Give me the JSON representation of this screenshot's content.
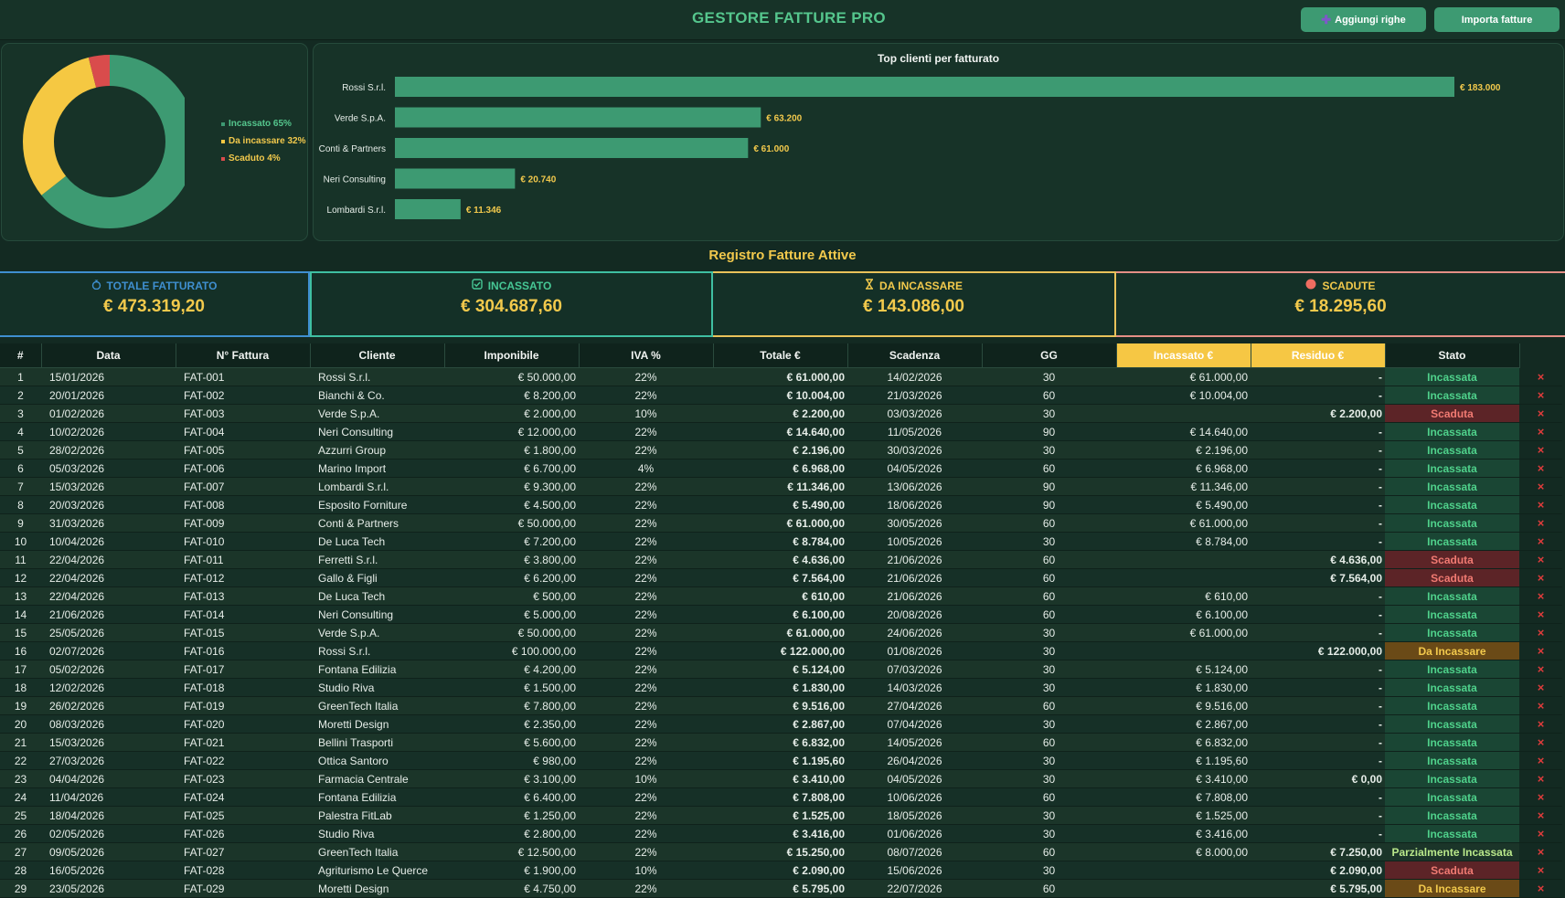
{
  "app": {
    "title": "GESTORE FATTURE PRO"
  },
  "toolbar": {
    "add_rows_label": "Aggiungi righe",
    "import_label": "Importa fatture"
  },
  "colors": {
    "green": "#3d9a72",
    "yellow": "#f5c842",
    "red": "#d94c4c",
    "accent": "#55c68d"
  },
  "donut": {
    "chart_data": {
      "type": "pie",
      "labels": [
        "Incassato",
        "Da incassare",
        "Scaduto"
      ],
      "values": [
        65,
        32,
        4
      ],
      "colors": [
        "#3d9a72",
        "#f5c842",
        "#d94c4c"
      ]
    },
    "legend": [
      "Incassato 65%",
      "Da incassare 32%",
      "Scaduto 4%"
    ]
  },
  "chart_data": {
    "type": "bar",
    "orientation": "horizontal",
    "title": "Top clienti per fatturato",
    "categories": [
      "Rossi S.r.l.",
      "Verde S.p.A.",
      "Conti & Partners",
      "Neri Consulting",
      "Lombardi S.r.l."
    ],
    "values": [
      183000,
      63200,
      61000,
      20740,
      11346
    ],
    "value_labels": [
      "€ 183.000",
      "€ 63.200",
      "€ 61.000",
      "€ 20.740",
      "€ 11.346"
    ],
    "xlim": [
      0,
      183000
    ]
  },
  "register": {
    "title": "Registro Fatture Attive"
  },
  "kpis": [
    {
      "label": "TOTALE FATTURATO",
      "value": "€ 473.319,20",
      "icon": "money-bag-icon",
      "color": "#3f8fd0"
    },
    {
      "label": "INCASSATO",
      "value": "€ 304.687,60",
      "icon": "check-box-icon",
      "color": "#46c795"
    },
    {
      "label": "DA INCASSARE",
      "value": "€ 143.086,00",
      "icon": "hourglass-icon",
      "color": "#f2c94c"
    },
    {
      "label": "SCADUTE",
      "value": "€ 18.295,60",
      "icon": "red-circle-icon",
      "color": "#f07a72"
    }
  ],
  "table": {
    "columns": [
      "#",
      "Data",
      "N° Fattura",
      "Cliente",
      "Imponibile",
      "IVA %",
      "Totale €",
      "Scadenza",
      "GG",
      "Incassato €",
      "Residuo €",
      "Stato"
    ],
    "rows": [
      [
        "1",
        "15/01/2026",
        "FAT-001",
        "Rossi S.r.l.",
        "€ 50.000,00",
        "22%",
        "€ 61.000,00",
        "14/02/2026",
        "30",
        "€ 61.000,00",
        "-",
        "Incassata"
      ],
      [
        "2",
        "20/01/2026",
        "FAT-002",
        "Bianchi & Co.",
        "€ 8.200,00",
        "22%",
        "€ 10.004,00",
        "21/03/2026",
        "60",
        "€ 10.004,00",
        "-",
        "Incassata"
      ],
      [
        "3",
        "01/02/2026",
        "FAT-003",
        "Verde S.p.A.",
        "€ 2.000,00",
        "10%",
        "€ 2.200,00",
        "03/03/2026",
        "30",
        "",
        "€ 2.200,00",
        "Scaduta"
      ],
      [
        "4",
        "10/02/2026",
        "FAT-004",
        "Neri Consulting",
        "€ 12.000,00",
        "22%",
        "€ 14.640,00",
        "11/05/2026",
        "90",
        "€ 14.640,00",
        "-",
        "Incassata"
      ],
      [
        "5",
        "28/02/2026",
        "FAT-005",
        "Azzurri Group",
        "€ 1.800,00",
        "22%",
        "€ 2.196,00",
        "30/03/2026",
        "30",
        "€ 2.196,00",
        "-",
        "Incassata"
      ],
      [
        "6",
        "05/03/2026",
        "FAT-006",
        "Marino Import",
        "€ 6.700,00",
        "4%",
        "€ 6.968,00",
        "04/05/2026",
        "60",
        "€ 6.968,00",
        "-",
        "Incassata"
      ],
      [
        "7",
        "15/03/2026",
        "FAT-007",
        "Lombardi S.r.l.",
        "€ 9.300,00",
        "22%",
        "€ 11.346,00",
        "13/06/2026",
        "90",
        "€ 11.346,00",
        "-",
        "Incassata"
      ],
      [
        "8",
        "20/03/2026",
        "FAT-008",
        "Esposito Forniture",
        "€ 4.500,00",
        "22%",
        "€ 5.490,00",
        "18/06/2026",
        "90",
        "€ 5.490,00",
        "-",
        "Incassata"
      ],
      [
        "9",
        "31/03/2026",
        "FAT-009",
        "Conti & Partners",
        "€ 50.000,00",
        "22%",
        "€ 61.000,00",
        "30/05/2026",
        "60",
        "€ 61.000,00",
        "-",
        "Incassata"
      ],
      [
        "10",
        "10/04/2026",
        "FAT-010",
        "De Luca Tech",
        "€ 7.200,00",
        "22%",
        "€ 8.784,00",
        "10/05/2026",
        "30",
        "€ 8.784,00",
        "-",
        "Incassata"
      ],
      [
        "11",
        "22/04/2026",
        "FAT-011",
        "Ferretti S.r.l.",
        "€ 3.800,00",
        "22%",
        "€ 4.636,00",
        "21/06/2026",
        "60",
        "",
        "€ 4.636,00",
        "Scaduta"
      ],
      [
        "12",
        "22/04/2026",
        "FAT-012",
        "Gallo & Figli",
        "€ 6.200,00",
        "22%",
        "€ 7.564,00",
        "21/06/2026",
        "60",
        "",
        "€ 7.564,00",
        "Scaduta"
      ],
      [
        "13",
        "22/04/2026",
        "FAT-013",
        "De Luca Tech",
        "€ 500,00",
        "22%",
        "€ 610,00",
        "21/06/2026",
        "60",
        "€ 610,00",
        "-",
        "Incassata"
      ],
      [
        "14",
        "21/06/2026",
        "FAT-014",
        "Neri Consulting",
        "€ 5.000,00",
        "22%",
        "€ 6.100,00",
        "20/08/2026",
        "60",
        "€ 6.100,00",
        "-",
        "Incassata"
      ],
      [
        "15",
        "25/05/2026",
        "FAT-015",
        "Verde S.p.A.",
        "€ 50.000,00",
        "22%",
        "€ 61.000,00",
        "24/06/2026",
        "30",
        "€ 61.000,00",
        "-",
        "Incassata"
      ],
      [
        "16",
        "02/07/2026",
        "FAT-016",
        "Rossi S.r.l.",
        "€ 100.000,00",
        "22%",
        "€ 122.000,00",
        "01/08/2026",
        "30",
        "",
        "€ 122.000,00",
        "Da Incassare"
      ],
      [
        "17",
        "05/02/2026",
        "FAT-017",
        "Fontana Edilizia",
        "€ 4.200,00",
        "22%",
        "€ 5.124,00",
        "07/03/2026",
        "30",
        "€ 5.124,00",
        "-",
        "Incassata"
      ],
      [
        "18",
        "12/02/2026",
        "FAT-018",
        "Studio Riva",
        "€ 1.500,00",
        "22%",
        "€ 1.830,00",
        "14/03/2026",
        "30",
        "€ 1.830,00",
        "-",
        "Incassata"
      ],
      [
        "19",
        "26/02/2026",
        "FAT-019",
        "GreenTech Italia",
        "€ 7.800,00",
        "22%",
        "€ 9.516,00",
        "27/04/2026",
        "60",
        "€ 9.516,00",
        "-",
        "Incassata"
      ],
      [
        "20",
        "08/03/2026",
        "FAT-020",
        "Moretti Design",
        "€ 2.350,00",
        "22%",
        "€ 2.867,00",
        "07/04/2026",
        "30",
        "€ 2.867,00",
        "-",
        "Incassata"
      ],
      [
        "21",
        "15/03/2026",
        "FAT-021",
        "Bellini Trasporti",
        "€ 5.600,00",
        "22%",
        "€ 6.832,00",
        "14/05/2026",
        "60",
        "€ 6.832,00",
        "-",
        "Incassata"
      ],
      [
        "22",
        "27/03/2026",
        "FAT-022",
        "Ottica Santoro",
        "€ 980,00",
        "22%",
        "€ 1.195,60",
        "26/04/2026",
        "30",
        "€ 1.195,60",
        "-",
        "Incassata"
      ],
      [
        "23",
        "04/04/2026",
        "FAT-023",
        "Farmacia Centrale",
        "€ 3.100,00",
        "10%",
        "€ 3.410,00",
        "04/05/2026",
        "30",
        "€ 3.410,00",
        "€ 0,00",
        "Incassata"
      ],
      [
        "24",
        "11/04/2026",
        "FAT-024",
        "Fontana Edilizia",
        "€ 6.400,00",
        "22%",
        "€ 7.808,00",
        "10/06/2026",
        "60",
        "€ 7.808,00",
        "-",
        "Incassata"
      ],
      [
        "25",
        "18/04/2026",
        "FAT-025",
        "Palestra FitLab",
        "€ 1.250,00",
        "22%",
        "€ 1.525,00",
        "18/05/2026",
        "30",
        "€ 1.525,00",
        "-",
        "Incassata"
      ],
      [
        "26",
        "02/05/2026",
        "FAT-026",
        "Studio Riva",
        "€ 2.800,00",
        "22%",
        "€ 3.416,00",
        "01/06/2026",
        "30",
        "€ 3.416,00",
        "-",
        "Incassata"
      ],
      [
        "27",
        "09/05/2026",
        "FAT-027",
        "GreenTech Italia",
        "€ 12.500,00",
        "22%",
        "€ 15.250,00",
        "08/07/2026",
        "60",
        "€ 8.000,00",
        "€ 7.250,00",
        "Parzialmente Incassata"
      ],
      [
        "28",
        "16/05/2026",
        "FAT-028",
        "Agriturismo Le Querce",
        "€ 1.900,00",
        "10%",
        "€ 2.090,00",
        "15/06/2026",
        "30",
        "",
        "€ 2.090,00",
        "Scaduta"
      ],
      [
        "29",
        "23/05/2026",
        "FAT-029",
        "Moretti Design",
        "€ 4.750,00",
        "22%",
        "€ 5.795,00",
        "22/07/2026",
        "60",
        "",
        "€ 5.795,00",
        "Da Incassare"
      ]
    ],
    "delete_icon": "×",
    "status_colors": {
      "Incassata": {
        "text": "#4fd18b",
        "bg": "#1a4634"
      },
      "Scaduta": {
        "text": "#f07a72",
        "bg": "#5c2427"
      },
      "Da Incassare": {
        "text": "#f2c94c",
        "bg": "#6a4a17"
      },
      "Parzialmente Incassata": {
        "text": "#b9e88a",
        "bg": "#1b3529"
      }
    }
  }
}
